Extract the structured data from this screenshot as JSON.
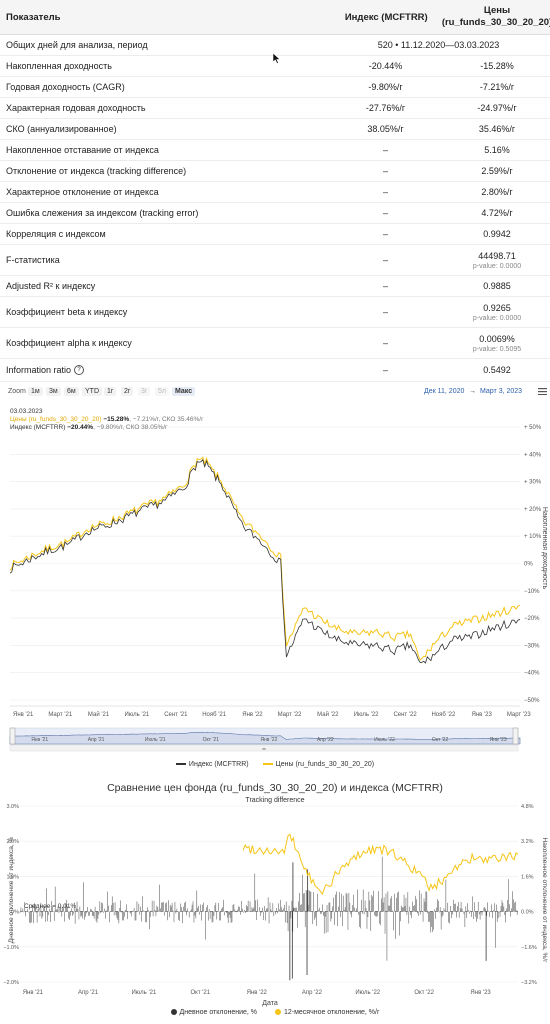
{
  "table": {
    "headers": [
      "Показатель",
      "Индекс (MCFTRR)",
      "Цены\n(ru_funds_30_30_20_20)"
    ],
    "rows": [
      {
        "label": "Общих дней для анализа, период",
        "span": "520 • 11.12.2020—03.03.2023"
      },
      {
        "label": "Накопленная доходность",
        "a": "-20.44%",
        "b": "-15.28%"
      },
      {
        "label": "Годовая доходность (CAGR)",
        "a": "-9.80%/г",
        "b": "-7.21%/г"
      },
      {
        "label": "Характерная годовая доходность",
        "a": "-27.76%/г",
        "b": "-24.97%/г"
      },
      {
        "label": "СКО (аннуализированное)",
        "a": "38.05%/г",
        "b": "35.46%/г"
      },
      {
        "label": "Накопленное отставание от индекса",
        "a": "–",
        "b": "5.16%"
      },
      {
        "label": "Отклонение от индекса (tracking difference)",
        "a": "–",
        "b": "2.59%/г"
      },
      {
        "label": "Характерное отклонение от индекса",
        "a": "–",
        "b": "2.80%/г"
      },
      {
        "label": "Ошибка слежения за индексом (tracking error)",
        "a": "–",
        "b": "4.72%/г"
      },
      {
        "label": "Корреляция с индексом",
        "a": "–",
        "b": "0.9942"
      },
      {
        "label": "F-статистика",
        "a": "–",
        "b": "44498.71",
        "p": "p-value: 0.0000"
      },
      {
        "label": "Adjusted R² к индексу",
        "a": "–",
        "b": "0.9885"
      },
      {
        "label": "Коэффициент beta к индексу",
        "a": "–",
        "b": "0.9265",
        "p": "p-value: 0.0000"
      },
      {
        "label": "Коэффициент alpha к индексу",
        "a": "–",
        "b": "0.0069%",
        "p": "p-value: 0.5095"
      },
      {
        "label": "Information ratio",
        "a": "–",
        "b": "0.5492",
        "icon": "question-circle-icon"
      }
    ]
  },
  "toolbar": {
    "zoom_label": "Zoom",
    "buttons": [
      "1м",
      "3м",
      "6м",
      "YTD",
      "1г",
      "2г",
      "3г",
      "5л",
      "Макс"
    ],
    "range_from": "Дек 11, 2020",
    "range_arrow": "→",
    "range_to": "Март 3, 2023",
    "menu_icon": "hamburger-icon"
  },
  "chart_data": [
    {
      "type": "line",
      "tooltip": {
        "date": "03.03.2023",
        "fund_name": "Цены (ru_funds_30_30_20_20)",
        "fund_value": "−15.28%",
        "fund_extra": ", −7.21%/г, СКО 35.46%/г",
        "index_name": "Индекс (MCFTRR)",
        "index_value": "−20.44%",
        "index_extra": ", −9.80%/г, СКО 38.05%/г"
      },
      "ylabel": "Накопленная доходность",
      "yticks": [
        "+ 50%",
        "+ 40%",
        "+ 30%",
        "+ 20%",
        "+ 10%",
        "0%",
        "−10%",
        "−20%",
        "−30%",
        "−40%",
        "−50%"
      ],
      "ylim": [
        -50,
        50
      ],
      "xticks": [
        "Янв '21",
        "Март '21",
        "Май '21",
        "Июль '21",
        "Сент '21",
        "Нояб '21",
        "Янв '22",
        "Март '22",
        "Май '22",
        "Июль '22",
        "Сент '22",
        "Нояб '22",
        "Янв '23",
        "Март '23"
      ],
      "navigator_ticks": [
        "Янв '21",
        "Апр '21",
        "Июль '21",
        "Окт '21",
        "Янв '22",
        "Апр '22",
        "Июль '22",
        "Окт '22",
        "Янв '23"
      ],
      "x_dates": [
        "2020-12-11",
        "2021-01-15",
        "2021-02-15",
        "2021-03-15",
        "2021-04-15",
        "2021-05-15",
        "2021-06-15",
        "2021-07-15",
        "2021-08-15",
        "2021-09-15",
        "2021-10-05",
        "2021-10-20",
        "2021-11-15",
        "2021-12-15",
        "2022-01-15",
        "2022-02-15",
        "2022-02-24",
        "2022-03-25",
        "2022-04-15",
        "2022-05-15",
        "2022-06-15",
        "2022-07-15",
        "2022-08-15",
        "2022-09-10",
        "2022-09-25",
        "2022-10-15",
        "2022-11-15",
        "2022-12-15",
        "2023-01-15",
        "2023-02-15",
        "2023-03-03"
      ],
      "series": [
        {
          "name": "Индекс (MCFTRR)",
          "color": "#333333",
          "values": [
            -2,
            2,
            5,
            7,
            12,
            14,
            17,
            20,
            23,
            28,
            37,
            36,
            28,
            14,
            8,
            0,
            -34,
            -20,
            -24,
            -28,
            -30,
            -30,
            -32,
            -30,
            -37,
            -34,
            -28,
            -27,
            -24,
            -22,
            -20.44
          ]
        },
        {
          "name": "Цены (ru_funds_30_30_20_20)",
          "color": "#f5c518",
          "values": [
            -1,
            3,
            6,
            8,
            13,
            15,
            18,
            21,
            24,
            29,
            38,
            37,
            29,
            16,
            10,
            2,
            -30,
            -16,
            -20,
            -24,
            -26,
            -25,
            -27,
            -26,
            -36,
            -30,
            -23,
            -21,
            -19,
            -17,
            -15.28
          ]
        }
      ],
      "legend": [
        "Индекс (MCFTRR)",
        "Цены (ru_funds_30_30_20_20)"
      ],
      "legend_placement": "bottom-center"
    },
    {
      "type": "bar",
      "title": "Сравнение цен фонда (ru_funds_30_30_20_20) и индекса (MCFTRR)",
      "subtitle": "Tracking difference",
      "ylabel_left": "Дневное отклонение от индекса, %",
      "ylabel_right": "Накопленное отклонение от индекса, %/г",
      "xlabel": "Дата",
      "yticks_left": [
        "3.0%",
        "2.0%",
        "1.0%",
        "0%",
        "−1.0%",
        "−2.0%"
      ],
      "yticks_right": [
        "4.8%",
        "3.2%",
        "1.6%",
        "0.0%",
        "−1.6%",
        "−3.2%"
      ],
      "ylim_left": [
        -2,
        3
      ],
      "ylim_right": [
        -3.2,
        4.8
      ],
      "xticks": [
        "Янв '21",
        "Апр '21",
        "Июль '21",
        "Окт '21",
        "Янв '22",
        "Апр '22",
        "Июль '22",
        "Окт '22",
        "Янв '23"
      ],
      "mean_label": "Среднее = 0.01%",
      "mean_value": 0.01,
      "line_series": {
        "name": "12-месячное отклонение, %/г",
        "x_dates": [
          "2021-12-10",
          "2022-01-15",
          "2022-02-15",
          "2022-02-24",
          "2022-03-25",
          "2022-04-15",
          "2022-05-15",
          "2022-06-15",
          "2022-07-15",
          "2022-08-15",
          "2022-09-15",
          "2022-10-15",
          "2022-11-15",
          "2022-12-15",
          "2023-01-15",
          "2023-02-15",
          "2023-03-03"
        ],
        "values": [
          2.9,
          2.8,
          2.7,
          3.5,
          1.7,
          0.8,
          1.8,
          2.6,
          2.9,
          2.6,
          1.9,
          1.0,
          1.9,
          2.4,
          2.3,
          2.5,
          2.6
        ]
      },
      "bar_series": {
        "name": "Дневное отклонение, %"
      },
      "legend": [
        "Дневное отклонение, %",
        "12-месячное отклонение, %/г"
      ]
    }
  ]
}
